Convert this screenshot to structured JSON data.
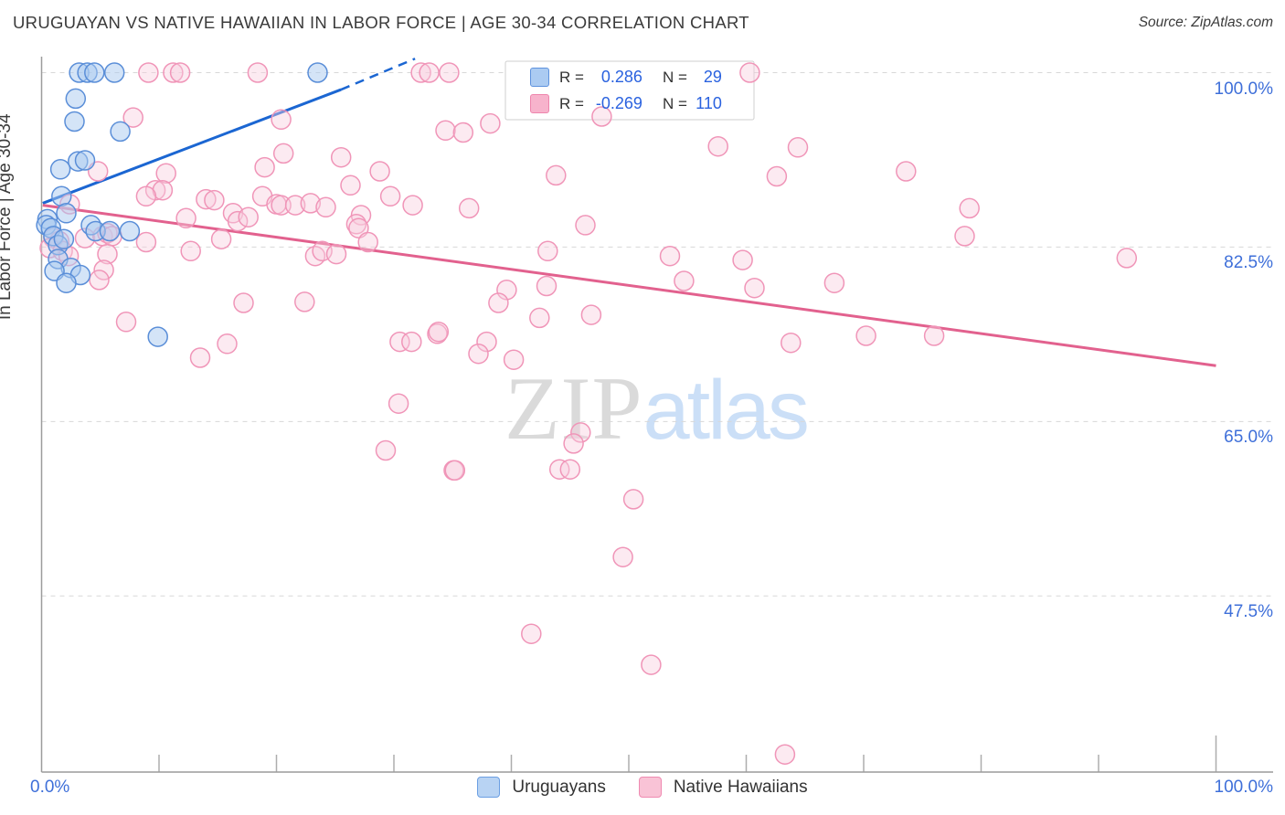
{
  "header": {
    "title": "URUGUAYAN VS NATIVE HAWAIIAN IN LABOR FORCE | AGE 30-34 CORRELATION CHART",
    "source": "Source: ZipAtlas.com"
  },
  "watermark": {
    "zip": "ZIP",
    "atlas": "atlas"
  },
  "y_axis": {
    "title": "In Labor Force | Age 30-34",
    "ticks": [
      {
        "value": 100,
        "label": "100.0%"
      },
      {
        "value": 82.5,
        "label": "82.5%"
      },
      {
        "value": 65,
        "label": "65.0%"
      },
      {
        "value": 47.5,
        "label": "47.5%"
      }
    ]
  },
  "x_axis": {
    "left_label": "0.0%",
    "right_label": "100.0%",
    "tick_values": [
      0,
      10,
      20,
      30,
      40,
      50,
      60,
      70,
      80,
      90,
      100
    ]
  },
  "legend_box": {
    "rows": [
      {
        "series": "Uruguayans",
        "r_label": "R =",
        "r_value": "0.286",
        "n_label": "N =",
        "n_value": "29",
        "color": "#abcbf2",
        "border": "#5e92de"
      },
      {
        "series": "Native Hawaiians",
        "r_label": "R =",
        "r_value": "-0.269",
        "n_label": "N =",
        "n_value": "110",
        "color": "#f7b3cc",
        "border": "#ee85ad"
      }
    ]
  },
  "bottom_legend": {
    "items": [
      {
        "label": "Uruguayans",
        "color": "#b8d3f3",
        "border": "#6b9fe3"
      },
      {
        "label": "Native Hawaiians",
        "color": "#f9c3d6",
        "border": "#ef8ab1"
      }
    ]
  },
  "chart_data": {
    "type": "scatter",
    "title": "URUGUAYAN VS NATIVE HAWAIIAN IN LABOR FORCE | AGE 30-34 CORRELATION CHART",
    "xlabel": "",
    "ylabel": "In Labor Force | Age 30-34",
    "x_range": [
      0,
      105
    ],
    "y_range": [
      29.8,
      101.6
    ],
    "gridlines_y": [
      100,
      82.5,
      65,
      47.5
    ],
    "legend_position": "bottom-center",
    "series": [
      {
        "name": "Uruguayans",
        "r": 0.286,
        "n": 29,
        "fill": "#a9c9f0",
        "stroke": "#5a8ed8",
        "css": "pt-uru",
        "points": [
          [
            3.2,
            100
          ],
          [
            3.9,
            100
          ],
          [
            4.5,
            100
          ],
          [
            6.2,
            100
          ],
          [
            23.5,
            100
          ],
          [
            2.9,
            97.4
          ],
          [
            2.8,
            95.1
          ],
          [
            6.7,
            94.1
          ],
          [
            1.6,
            90.3
          ],
          [
            3.1,
            91.1
          ],
          [
            3.7,
            91.2
          ],
          [
            1.7,
            87.6
          ],
          [
            2.1,
            85.9
          ],
          [
            0.5,
            85.3
          ],
          [
            0.4,
            84.7
          ],
          [
            0.8,
            84.4
          ],
          [
            4.2,
            84.7
          ],
          [
            4.6,
            84.1
          ],
          [
            5.8,
            84.1
          ],
          [
            7.5,
            84.1
          ],
          [
            1,
            83.6
          ],
          [
            1.4,
            82.7
          ],
          [
            1.9,
            83.3
          ],
          [
            1.4,
            81.3
          ],
          [
            2.5,
            80.4
          ],
          [
            3.3,
            79.7
          ],
          [
            1.1,
            80.1
          ],
          [
            2.1,
            78.9
          ],
          [
            9.9,
            73.5
          ]
        ]
      },
      {
        "name": "Native Hawaiians",
        "r": -0.269,
        "n": 110,
        "fill": "#f9cedd",
        "stroke": "#f095b8",
        "css": "pt-haw",
        "points": [
          [
            9.1,
            100
          ],
          [
            11.2,
            100
          ],
          [
            11.8,
            100
          ],
          [
            18.4,
            100
          ],
          [
            32.3,
            100
          ],
          [
            33,
            100
          ],
          [
            34.7,
            100
          ],
          [
            60.3,
            100
          ],
          [
            7.8,
            95.5
          ],
          [
            20.4,
            95.3
          ],
          [
            4.8,
            90.1
          ],
          [
            2.4,
            86.8
          ],
          [
            1,
            83.4
          ],
          [
            1.5,
            83.1
          ],
          [
            0.7,
            82.4
          ],
          [
            1.8,
            82.1
          ],
          [
            2.3,
            81.6
          ],
          [
            3.7,
            83.4
          ],
          [
            5.2,
            83.6
          ],
          [
            5.6,
            83.9
          ],
          [
            6,
            83.6
          ],
          [
            5.6,
            81.8
          ],
          [
            5.3,
            80.2
          ],
          [
            4.9,
            79.2
          ],
          [
            7.2,
            75
          ],
          [
            10.6,
            89.9
          ],
          [
            9.7,
            88.2
          ],
          [
            10.3,
            88.2
          ],
          [
            8.9,
            87.6
          ],
          [
            19,
            90.5
          ],
          [
            20.6,
            91.9
          ],
          [
            14,
            87.3
          ],
          [
            14.7,
            87.2
          ],
          [
            18.8,
            87.6
          ],
          [
            20,
            86.8
          ],
          [
            20.4,
            86.7
          ],
          [
            21.6,
            86.7
          ],
          [
            22.9,
            86.9
          ],
          [
            24.2,
            86.5
          ],
          [
            16.3,
            85.9
          ],
          [
            16.7,
            85.1
          ],
          [
            17.6,
            85.5
          ],
          [
            12.3,
            85.4
          ],
          [
            12.7,
            82.1
          ],
          [
            15.3,
            83.3
          ],
          [
            8.9,
            83
          ],
          [
            25.5,
            91.5
          ],
          [
            26.3,
            88.7
          ],
          [
            27.2,
            85.7
          ],
          [
            26.8,
            84.8
          ],
          [
            27,
            84.4
          ],
          [
            28.8,
            90.1
          ],
          [
            29.7,
            87.6
          ],
          [
            31.6,
            86.7
          ],
          [
            27.8,
            83
          ],
          [
            23.3,
            81.6
          ],
          [
            23.9,
            82.1
          ],
          [
            25.1,
            81.8
          ],
          [
            17.2,
            76.9
          ],
          [
            22.4,
            77
          ],
          [
            13.5,
            71.4
          ],
          [
            15.8,
            72.8
          ],
          [
            30.5,
            73
          ],
          [
            31.5,
            73
          ],
          [
            33.7,
            73.8
          ],
          [
            30.4,
            66.8
          ],
          [
            29.3,
            62.1
          ],
          [
            35.1,
            60.1
          ],
          [
            47.7,
            95.6
          ],
          [
            34.4,
            94.2
          ],
          [
            35.9,
            94
          ],
          [
            38.2,
            94.9
          ],
          [
            57.6,
            92.6
          ],
          [
            64.4,
            92.5
          ],
          [
            43.8,
            89.7
          ],
          [
            62.6,
            89.6
          ],
          [
            36.4,
            86.4
          ],
          [
            46.3,
            84.7
          ],
          [
            43.1,
            82.1
          ],
          [
            53.5,
            81.6
          ],
          [
            59.7,
            81.2
          ],
          [
            54.7,
            79.1
          ],
          [
            60.7,
            78.4
          ],
          [
            67.5,
            78.9
          ],
          [
            39.6,
            78.2
          ],
          [
            38.9,
            76.9
          ],
          [
            43,
            78.6
          ],
          [
            46.8,
            75.7
          ],
          [
            42.4,
            75.4
          ],
          [
            73.6,
            90.1
          ],
          [
            79,
            86.4
          ],
          [
            78.6,
            83.6
          ],
          [
            92.4,
            81.4
          ],
          [
            33.8,
            74
          ],
          [
            37.9,
            73
          ],
          [
            37.2,
            71.8
          ],
          [
            40.2,
            71.2
          ],
          [
            63.8,
            72.9
          ],
          [
            45.9,
            63.9
          ],
          [
            45.3,
            62.8
          ],
          [
            44.1,
            60.2
          ],
          [
            45,
            60.2
          ],
          [
            35.2,
            60.1
          ],
          [
            50.4,
            57.2
          ],
          [
            49.5,
            51.4
          ],
          [
            70.2,
            73.6
          ],
          [
            76,
            73.6
          ],
          [
            41.7,
            43.7
          ],
          [
            51.9,
            40.6
          ],
          [
            63.3,
            31.6
          ]
        ]
      }
    ],
    "trend_lines": [
      {
        "series": "Uruguayans",
        "solid": [
          [
            0.1,
            86.9
          ],
          [
            25.5,
            98.3
          ]
        ],
        "dashed": [
          [
            25.5,
            98.3
          ],
          [
            31.8,
            101.4
          ]
        ]
      },
      {
        "series": "Native Hawaiians",
        "solid": [
          [
            0.1,
            86.7
          ],
          [
            100,
            70.6
          ]
        ]
      }
    ]
  }
}
